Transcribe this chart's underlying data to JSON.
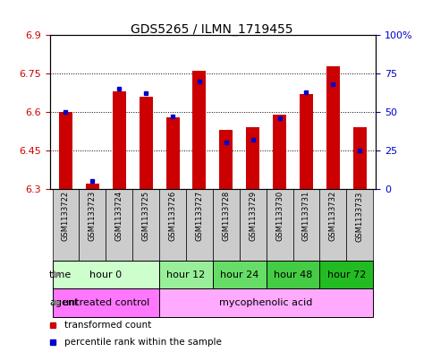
{
  "title": "GDS5265 / ILMN_1719455",
  "samples": [
    "GSM1133722",
    "GSM1133723",
    "GSM1133724",
    "GSM1133725",
    "GSM1133726",
    "GSM1133727",
    "GSM1133728",
    "GSM1133729",
    "GSM1133730",
    "GSM1133731",
    "GSM1133732",
    "GSM1133733"
  ],
  "transformed_counts": [
    6.6,
    6.32,
    6.68,
    6.66,
    6.58,
    6.76,
    6.53,
    6.54,
    6.59,
    6.67,
    6.78,
    6.54
  ],
  "percentile_ranks": [
    50,
    5,
    65,
    62,
    47,
    70,
    30,
    32,
    46,
    63,
    68,
    25
  ],
  "ymin": 6.3,
  "ymax": 6.9,
  "yticks": [
    6.3,
    6.45,
    6.6,
    6.75,
    6.9
  ],
  "ytick_labels": [
    "6.3",
    "6.45",
    "6.6",
    "6.75",
    "6.9"
  ],
  "right_yticks": [
    0,
    25,
    50,
    75,
    100
  ],
  "right_ytick_labels": [
    "0",
    "25",
    "50",
    "75",
    "100%"
  ],
  "bar_color": "#cc0000",
  "blue_color": "#0000cc",
  "bar_width": 0.5,
  "time_groups": [
    {
      "label": "hour 0",
      "samples": [
        0,
        1,
        2,
        3
      ],
      "color": "#ccffcc"
    },
    {
      "label": "hour 12",
      "samples": [
        4,
        5
      ],
      "color": "#99ee99"
    },
    {
      "label": "hour 24",
      "samples": [
        6,
        7
      ],
      "color": "#66dd66"
    },
    {
      "label": "hour 48",
      "samples": [
        8,
        9
      ],
      "color": "#44cc44"
    },
    {
      "label": "hour 72",
      "samples": [
        10,
        11
      ],
      "color": "#22bb22"
    }
  ],
  "agent_groups": [
    {
      "label": "untreated control",
      "samples": [
        0,
        1,
        2,
        3
      ],
      "color": "#ff77ff"
    },
    {
      "label": "mycophenolic acid",
      "samples": [
        4,
        5,
        6,
        7,
        8,
        9,
        10,
        11
      ],
      "color": "#ffaaff"
    }
  ],
  "sample_bg": "#cccccc",
  "tick_label_color_left": "#cc0000",
  "tick_label_color_right": "#0000cc",
  "legend_red_label": "transformed count",
  "legend_blue_label": "percentile rank within the sample",
  "title_fontsize": 10,
  "tick_fontsize": 8,
  "row_fontsize": 8,
  "sample_fontsize": 6
}
